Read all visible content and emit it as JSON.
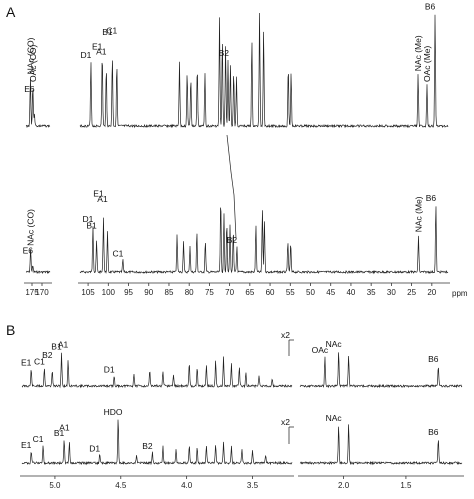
{
  "panels": {
    "a": "A",
    "b": "B"
  },
  "axis_a": {
    "unit": "ppm",
    "ticks_left": [
      "175",
      "170"
    ],
    "ticks_right": [
      "105",
      "100",
      "95",
      "90",
      "85",
      "80",
      "75",
      "70",
      "65",
      "60",
      "55",
      "50",
      "45",
      "40",
      "35",
      "30",
      "25",
      "20"
    ]
  },
  "axis_b": {
    "ticks_left": [
      "5.0",
      "4.5",
      "4.0",
      "3.5"
    ],
    "ticks_right": [
      "2.0",
      "1.5"
    ]
  },
  "scale_marks": [
    "x2",
    "x2"
  ],
  "chart_data": [
    {
      "type": "line",
      "title": "",
      "xlabel": "ppm",
      "spectrum": "13C, top trace",
      "xlim_left": [
        178,
        166
      ],
      "xlim_right": [
        107,
        16
      ],
      "peak_labels": [
        {
          "label": "NAc (CO)",
          "x": 175.8
        },
        {
          "label": "OAc (CO)",
          "x": 174.6
        },
        {
          "label": "E6",
          "x": 173.8
        },
        {
          "label": "D1",
          "x": 104.3
        },
        {
          "label": "E1",
          "x": 101.5
        },
        {
          "label": "A1",
          "x": 100.5
        },
        {
          "label": "B1",
          "x": 99.0
        },
        {
          "label": "C1",
          "x": 97.9
        },
        {
          "label": "B2",
          "x": 70.2
        },
        {
          "label": "NAc (Me)",
          "x": 23.4
        },
        {
          "label": "OAc (Me)",
          "x": 21.2
        },
        {
          "label": "B6",
          "x": 19.2
        }
      ]
    },
    {
      "type": "line",
      "title": "",
      "xlabel": "ppm",
      "spectrum": "13C, bottom trace",
      "xlim_left": [
        178,
        166
      ],
      "xlim_right": [
        107,
        16
      ],
      "peak_labels": [
        {
          "label": "NAc (CO)",
          "x": 175.7
        },
        {
          "label": "E6",
          "x": 174.6
        },
        {
          "label": "D1",
          "x": 103.8
        },
        {
          "label": "B1",
          "x": 102.9
        },
        {
          "label": "E1",
          "x": 101.2
        },
        {
          "label": "A1",
          "x": 100.2
        },
        {
          "label": "C1",
          "x": 96.4
        },
        {
          "label": "B2",
          "x": 68.2
        },
        {
          "label": "NAc (Me)",
          "x": 23.3
        },
        {
          "label": "B6",
          "x": 19.0
        }
      ]
    },
    {
      "type": "line",
      "title": "",
      "spectrum": "1H, top trace",
      "xlim_left": [
        5.25,
        3.2
      ],
      "xlim_right": [
        2.35,
        1.05
      ],
      "peak_labels": [
        {
          "label": "E1",
          "x": 5.18
        },
        {
          "label": "C1",
          "x": 5.08
        },
        {
          "label": "B2",
          "x": 5.02
        },
        {
          "label": "B1",
          "x": 4.95
        },
        {
          "label": "A1",
          "x": 4.9
        },
        {
          "label": "D1",
          "x": 4.55
        },
        {
          "label": "OAc",
          "x": 2.15
        },
        {
          "label": "NAc",
          "x": 2.04
        },
        {
          "label": "B6",
          "x": 1.24
        }
      ]
    },
    {
      "type": "line",
      "title": "",
      "spectrum": "1H, bottom trace",
      "xlim_left": [
        5.25,
        3.2
      ],
      "xlim_right": [
        2.35,
        1.05
      ],
      "peak_labels": [
        {
          "label": "E1",
          "x": 5.18
        },
        {
          "label": "C1",
          "x": 5.09
        },
        {
          "label": "B1",
          "x": 4.93
        },
        {
          "label": "A1",
          "x": 4.89
        },
        {
          "label": "D1",
          "x": 4.66
        },
        {
          "label": "HDO",
          "x": 4.52
        },
        {
          "label": "B2",
          "x": 4.26
        },
        {
          "label": "NAc",
          "x": 2.04
        },
        {
          "label": "B6",
          "x": 1.24
        }
      ]
    }
  ]
}
